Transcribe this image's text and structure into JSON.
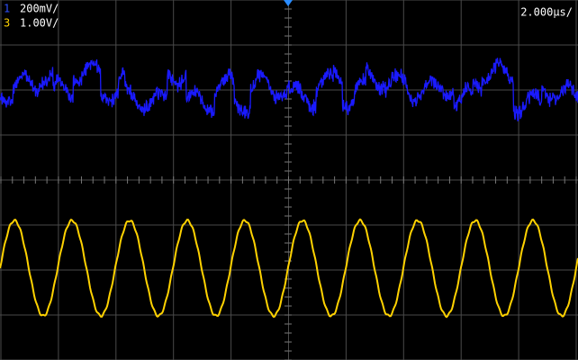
{
  "channels": [
    {
      "number": "1",
      "scale": "200mV/"
    },
    {
      "number": "3",
      "scale": "1.00V/"
    }
  ],
  "timebase": "2.000µs/"
}
